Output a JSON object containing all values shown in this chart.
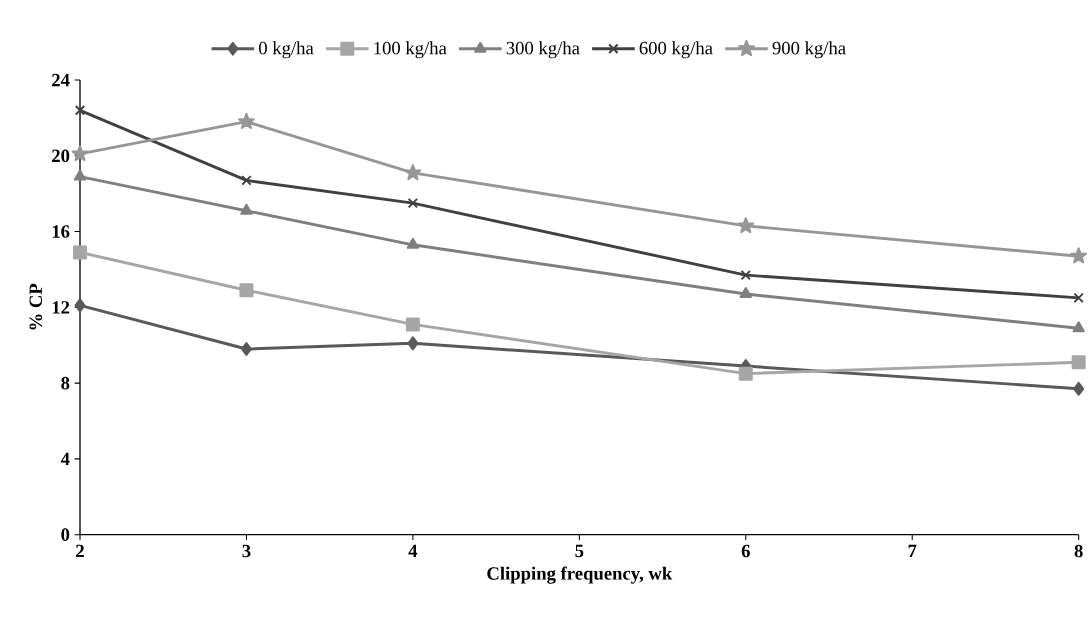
{
  "chart_data": {
    "type": "line",
    "xlabel": "Clipping frequency, wk",
    "ylabel": "% CP",
    "x": [
      2,
      3,
      4,
      6,
      8
    ],
    "xlim": [
      2,
      8
    ],
    "xticks": [
      2,
      3,
      4,
      5,
      6,
      7,
      8
    ],
    "ylim": [
      0,
      24
    ],
    "yticks": [
      0,
      4,
      8,
      12,
      16,
      20,
      24
    ],
    "grid": false,
    "legend": "top",
    "line_style": "solid",
    "series": [
      {
        "name": "0 kg/ha",
        "color": "#595959",
        "marker": "diamond",
        "values": [
          12.1,
          9.8,
          10.1,
          8.9,
          7.7
        ]
      },
      {
        "name": "100 kg/ha",
        "color": "#a6a6a6",
        "marker": "square",
        "values": [
          14.9,
          12.9,
          11.1,
          8.5,
          9.1
        ]
      },
      {
        "name": "300 kg/ha",
        "color": "#7f7f7f",
        "marker": "triangle",
        "values": [
          18.9,
          17.1,
          15.3,
          12.7,
          10.9
        ]
      },
      {
        "name": "600 kg/ha",
        "color": "#404040",
        "marker": "cross",
        "values": [
          22.4,
          18.7,
          17.5,
          13.7,
          12.5
        ]
      },
      {
        "name": "900 kg/ha",
        "color": "#969696",
        "marker": "star",
        "values": [
          20.1,
          21.8,
          19.1,
          16.3,
          14.7
        ]
      }
    ]
  }
}
